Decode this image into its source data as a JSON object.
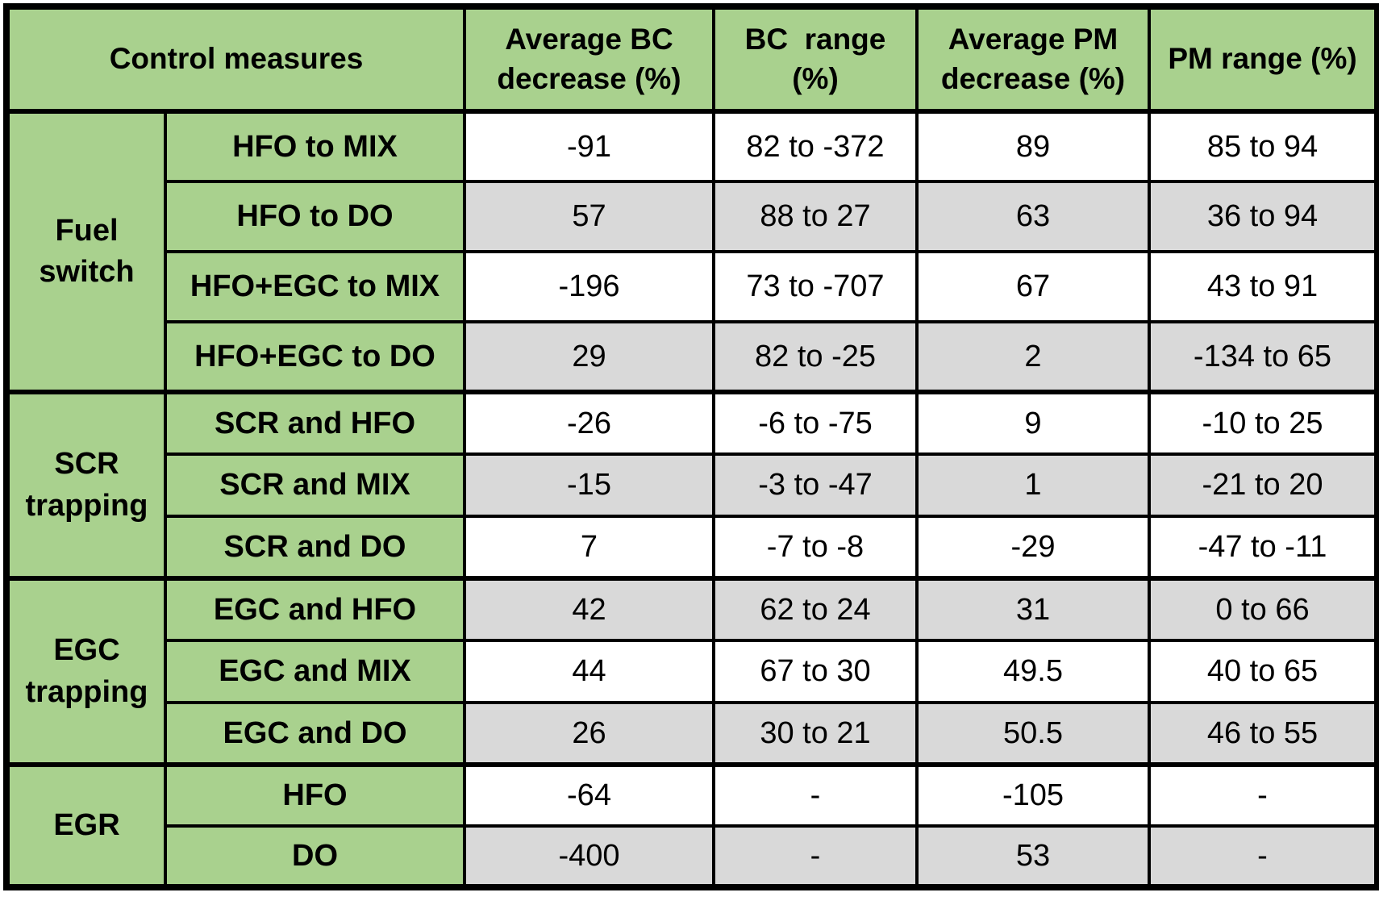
{
  "table": {
    "headers": {
      "control_measures": "Control measures",
      "avg_bc": "Average BC\ndecrease (%)",
      "bc_range": "BC  range\n(%)",
      "avg_pm": "Average PM\ndecrease (%)",
      "pm_range": "PM range (%)"
    },
    "groups": [
      {
        "name": "Fuel\nswitch",
        "rows": [
          {
            "measure": "HFO to MIX",
            "avg_bc": "-91",
            "bc_range": "82 to -372",
            "avg_pm": "89",
            "pm_range": "85 to 94",
            "shade": "white"
          },
          {
            "measure": "HFO to DO",
            "avg_bc": "57",
            "bc_range": "88 to 27",
            "avg_pm": "63",
            "pm_range": "36 to 94",
            "shade": "gray"
          },
          {
            "measure": "HFO+EGC to MIX",
            "avg_bc": "-196",
            "bc_range": "73 to -707",
            "avg_pm": "67",
            "pm_range": "43 to 91",
            "shade": "white"
          },
          {
            "measure": "HFO+EGC to DO",
            "avg_bc": "29",
            "bc_range": "82 to -25",
            "avg_pm": "2",
            "pm_range": "-134 to 65",
            "shade": "gray"
          }
        ]
      },
      {
        "name": "SCR\ntrapping",
        "rows": [
          {
            "measure": "SCR and HFO",
            "avg_bc": "-26",
            "bc_range": "-6 to -75",
            "avg_pm": "9",
            "pm_range": "-10 to 25",
            "shade": "white"
          },
          {
            "measure": "SCR and MIX",
            "avg_bc": "-15",
            "bc_range": "-3 to -47",
            "avg_pm": "1",
            "pm_range": "-21 to 20",
            "shade": "gray"
          },
          {
            "measure": "SCR and DO",
            "avg_bc": "7",
            "bc_range": "-7 to -8",
            "avg_pm": "-29",
            "pm_range": "-47 to -11",
            "shade": "white"
          }
        ]
      },
      {
        "name": "EGC\ntrapping",
        "rows": [
          {
            "measure": "EGC and HFO",
            "avg_bc": "42",
            "bc_range": "62 to 24",
            "avg_pm": "31",
            "pm_range": "0 to 66",
            "shade": "gray"
          },
          {
            "measure": "EGC and MIX",
            "avg_bc": "44",
            "bc_range": "67 to 30",
            "avg_pm": "49.5",
            "pm_range": "40 to 65",
            "shade": "white"
          },
          {
            "measure": "EGC and DO",
            "avg_bc": "26",
            "bc_range": "30 to 21",
            "avg_pm": "50.5",
            "pm_range": "46 to 55",
            "shade": "gray"
          }
        ]
      },
      {
        "name": "EGR",
        "rows": [
          {
            "measure": "HFO",
            "avg_bc": "-64",
            "bc_range": "-",
            "avg_pm": "-105",
            "pm_range": "-",
            "shade": "white"
          },
          {
            "measure": "DO",
            "avg_bc": "-400",
            "bc_range": "-",
            "avg_pm": "53",
            "pm_range": "-",
            "shade": "gray"
          }
        ]
      }
    ],
    "colors": {
      "header_green": "#a9d18e",
      "row_white": "#ffffff",
      "row_gray": "#d9d9d9",
      "border_black": "#000000"
    }
  },
  "chart_data": {
    "type": "table",
    "title": "",
    "columns": [
      "Control measures",
      "Average BC decrease (%)",
      "BC range (%)",
      "Average PM decrease (%)",
      "PM range (%)"
    ],
    "row_groups": [
      {
        "group": "Fuel switch",
        "rows": [
          [
            "HFO to MIX",
            -91,
            "82 to -372",
            89,
            "85 to 94"
          ],
          [
            "HFO to DO",
            57,
            "88 to 27",
            63,
            "36 to 94"
          ],
          [
            "HFO+EGC to MIX",
            -196,
            "73 to -707",
            67,
            "43 to 91"
          ],
          [
            "HFO+EGC to DO",
            29,
            "82 to -25",
            2,
            "-134 to 65"
          ]
        ]
      },
      {
        "group": "SCR trapping",
        "rows": [
          [
            "SCR and HFO",
            -26,
            "-6 to -75",
            9,
            "-10 to 25"
          ],
          [
            "SCR and MIX",
            -15,
            "-3 to -47",
            1,
            "-21 to 20"
          ],
          [
            "SCR and DO",
            7,
            "-7 to -8",
            -29,
            "-47 to -11"
          ]
        ]
      },
      {
        "group": "EGC trapping",
        "rows": [
          [
            "EGC and HFO",
            42,
            "62 to 24",
            31,
            "0 to 66"
          ],
          [
            "EGC and MIX",
            44,
            "67 to 30",
            49.5,
            "40 to 65"
          ],
          [
            "EGC and DO",
            26,
            "30 to 21",
            50.5,
            "46 to 55"
          ]
        ]
      },
      {
        "group": "EGR",
        "rows": [
          [
            "HFO",
            -64,
            "-",
            -105,
            "-"
          ],
          [
            "DO",
            -400,
            "-",
            53,
            "-"
          ]
        ]
      }
    ]
  }
}
